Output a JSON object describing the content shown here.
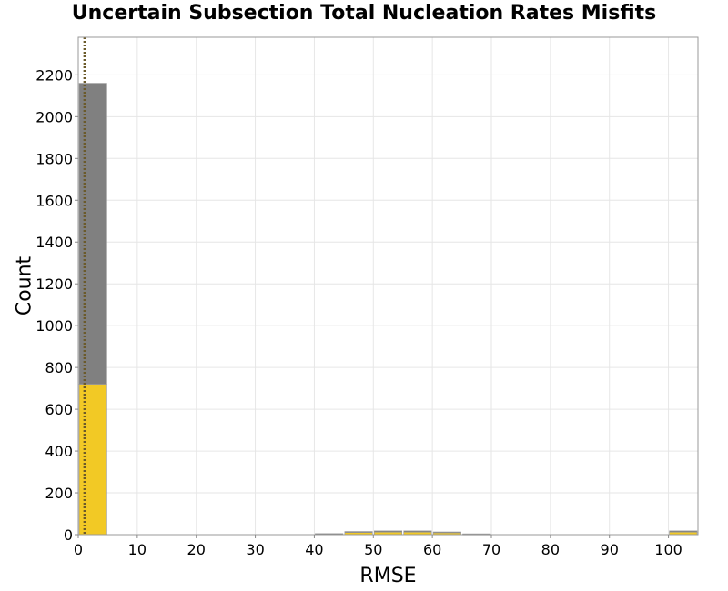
{
  "chart_data": {
    "type": "bar",
    "stacked": true,
    "title": "Uncertain Subsection Total Nucleation Rates Misfits",
    "xlabel": "RMSE",
    "ylabel": "Count",
    "xlim": [
      0,
      105
    ],
    "ylim": [
      0,
      2380
    ],
    "xticks": [
      0,
      10,
      20,
      30,
      40,
      50,
      60,
      70,
      80,
      90,
      100
    ],
    "yticks": [
      0,
      200,
      400,
      600,
      800,
      1000,
      1200,
      1400,
      1600,
      1800,
      2000,
      2200
    ],
    "grid": true,
    "bin_width": 5,
    "series": [
      {
        "color": "#f2c925",
        "bins": [
          {
            "x0": 0,
            "x1": 5,
            "value": 720
          },
          {
            "x0": 40,
            "x1": 45,
            "value": 4
          },
          {
            "x0": 45,
            "x1": 50,
            "value": 10
          },
          {
            "x0": 50,
            "x1": 55,
            "value": 12
          },
          {
            "x0": 55,
            "x1": 60,
            "value": 12
          },
          {
            "x0": 60,
            "x1": 65,
            "value": 9
          },
          {
            "x0": 65,
            "x1": 70,
            "value": 3
          },
          {
            "x0": 100,
            "x1": 105,
            "value": 12
          }
        ]
      },
      {
        "color": "#808080",
        "bins": [
          {
            "x0": 0,
            "x1": 5,
            "value": 1440
          },
          {
            "x0": 40,
            "x1": 45,
            "value": 1
          },
          {
            "x0": 45,
            "x1": 50,
            "value": 5
          },
          {
            "x0": 50,
            "x1": 55,
            "value": 6
          },
          {
            "x0": 55,
            "x1": 60,
            "value": 6
          },
          {
            "x0": 60,
            "x1": 65,
            "value": 4
          },
          {
            "x0": 65,
            "x1": 70,
            "value": 1
          },
          {
            "x0": 100,
            "x1": 105,
            "value": 6
          }
        ]
      }
    ],
    "reference_line": {
      "x": 1.1,
      "style": "dotted",
      "color": "#6b5a2a"
    }
  }
}
